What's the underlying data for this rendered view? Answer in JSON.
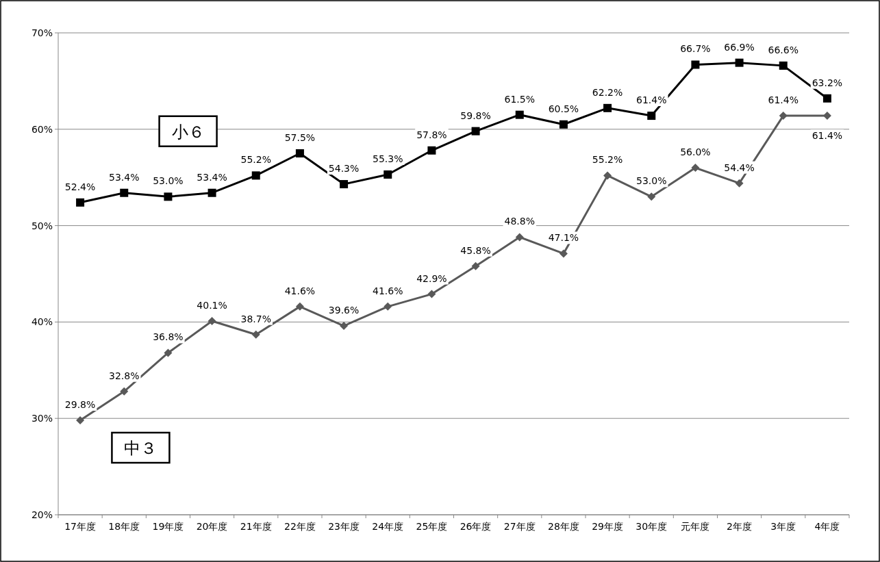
{
  "chart_data": {
    "type": "line",
    "categories": [
      "17年度",
      "18年度",
      "19年度",
      "20年度",
      "21年度",
      "22年度",
      "23年度",
      "24年度",
      "25年度",
      "26年度",
      "27年度",
      "28年度",
      "29年度",
      "30年度",
      "元年度",
      "2年度",
      "3年度",
      "4年度"
    ],
    "series": [
      {
        "name": "小６",
        "color": "#000000",
        "marker": "square",
        "values": [
          52.4,
          53.4,
          53.0,
          53.4,
          55.2,
          57.5,
          54.3,
          55.3,
          57.8,
          59.8,
          61.5,
          60.5,
          62.2,
          61.4,
          66.7,
          66.9,
          66.6,
          63.2
        ],
        "value_labels": [
          "52.4%",
          "53.4%",
          "53.0%",
          "53.4%",
          "55.2%",
          "57.5%",
          "54.3%",
          "55.3%",
          "57.8%",
          "59.8%",
          "61.5%",
          "60.5%",
          "62.2%",
          "61.4%",
          "66.7%",
          "66.9%",
          "66.6%",
          "63.2%"
        ]
      },
      {
        "name": "中３",
        "color": "#595959",
        "marker": "diamond",
        "values": [
          29.8,
          32.8,
          36.8,
          40.1,
          38.7,
          41.6,
          39.6,
          41.6,
          42.9,
          45.8,
          48.8,
          47.1,
          55.2,
          53.0,
          56.0,
          54.4,
          61.4,
          61.4
        ],
        "value_labels": [
          "29.8%",
          "32.8%",
          "36.8%",
          "40.1%",
          "38.7%",
          "41.6%",
          "39.6%",
          "41.6%",
          "42.9%",
          "45.8%",
          "48.8%",
          "47.1%",
          "55.2%",
          "53.0%",
          "56.0%",
          "54.4%",
          "61.4%",
          "61.4%"
        ]
      }
    ],
    "ylim": [
      20,
      70
    ],
    "yticks": [
      {
        "value": 20,
        "label": "20%"
      },
      {
        "value": 30,
        "label": "30%"
      },
      {
        "value": 40,
        "label": "40%"
      },
      {
        "value": 50,
        "label": "50%"
      },
      {
        "value": 60,
        "label": "60%"
      },
      {
        "value": 70,
        "label": "70%"
      }
    ],
    "grid": "y",
    "legend": false
  }
}
